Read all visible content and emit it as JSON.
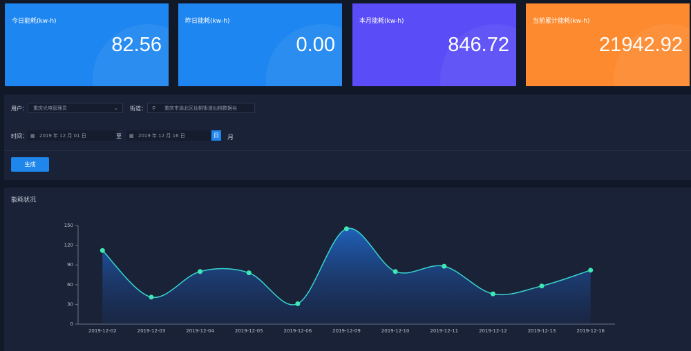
{
  "cards": [
    {
      "label": "今日能耗(kw-h)",
      "value": "82.56"
    },
    {
      "label": "昨日能耗(kw-h)",
      "value": "0.00"
    },
    {
      "label": "本月能耗(kw-h)",
      "value": "846.72"
    },
    {
      "label": "当前累计能耗(kw-h)",
      "value": "21942.92"
    }
  ],
  "form": {
    "user_label": "用户：",
    "user_value": "重庆光电管理员",
    "street_label": "街道：",
    "street_value": "重庆市渝北区仙桃街道仙桃数据谷",
    "time_label": "时间：",
    "start_date": "2019 年 12 月 01 日",
    "to": "至",
    "end_date": "2019 年 12 月 16 日",
    "day_button": "日",
    "month_button": "月",
    "submit": "生成"
  },
  "chart_data": {
    "type": "line",
    "title": "能耗状况",
    "categories": [
      "2019-12-02",
      "2019-12-03",
      "2019-12-04",
      "2019-12-05",
      "2019-12-06",
      "2019-12-09",
      "2019-12-10",
      "2019-12-11",
      "2019-12-12",
      "2019-12-13",
      "2019-12-16"
    ],
    "values": [
      112,
      41,
      80,
      78,
      31,
      145,
      80,
      88,
      46,
      58,
      82
    ],
    "color": "#37d6d0",
    "point_color": "#3ee8b4",
    "ylim": [
      0,
      150
    ],
    "yticks": [
      0,
      30,
      60,
      90,
      120,
      150
    ],
    "grid": false
  }
}
